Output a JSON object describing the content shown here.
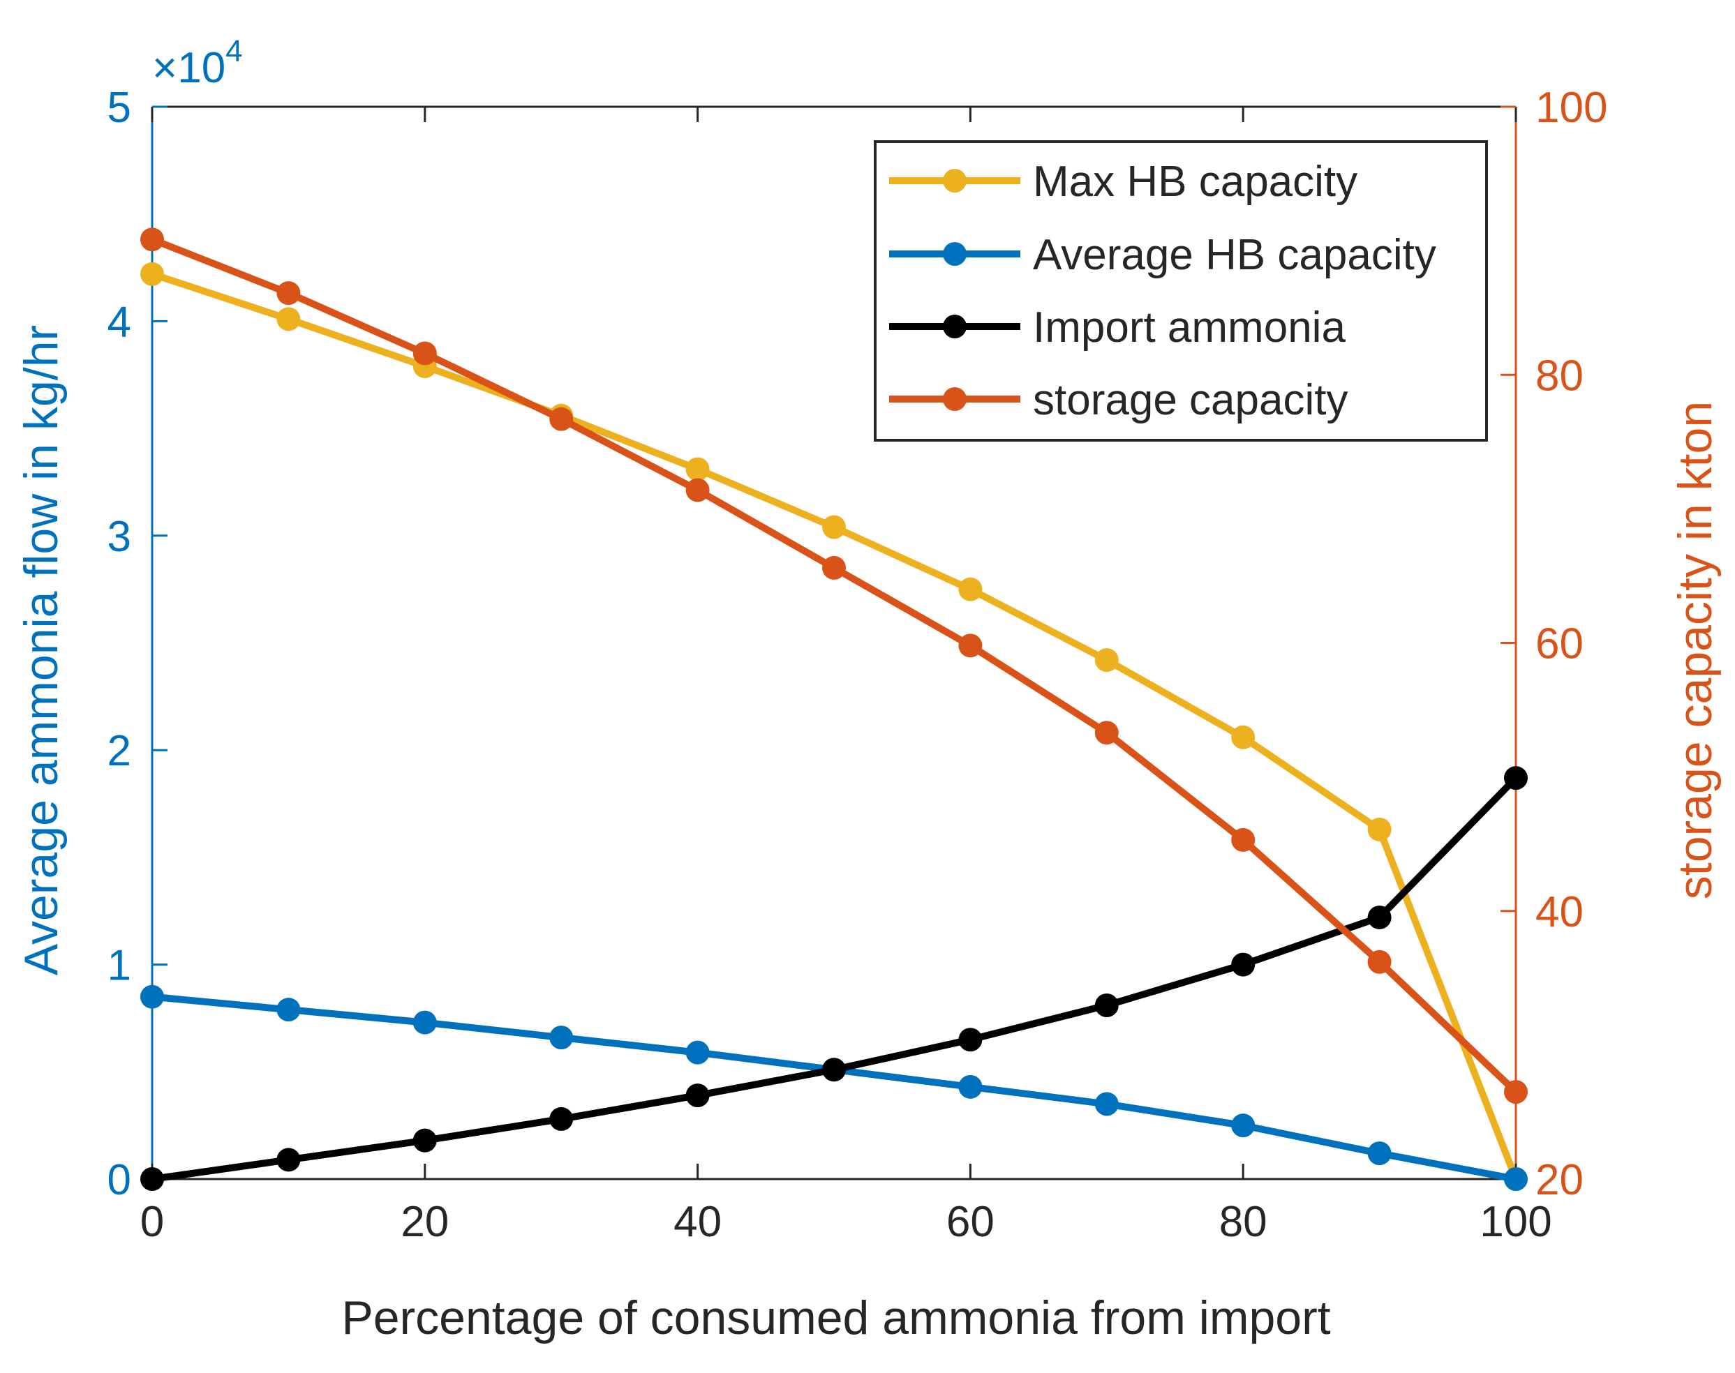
{
  "chart_data": {
    "type": "line",
    "title": "",
    "xlabel": "Percentage of consumed ammonia from import",
    "ylabel_left": "Average ammonia flow in kg/hr",
    "ylabel_right": "storage capacity in kton",
    "left_axis_multiplier": "×10",
    "left_axis_exponent": "4",
    "x": [
      0,
      10,
      20,
      30,
      40,
      50,
      60,
      70,
      80,
      90,
      100
    ],
    "xlim": [
      0,
      100
    ],
    "ylim_left": [
      0,
      5
    ],
    "ylim_right": [
      20,
      100
    ],
    "xticks": [
      0,
      20,
      40,
      60,
      80,
      100
    ],
    "xtick_labels": [
      "0",
      "20",
      "40",
      "60",
      "80",
      "100"
    ],
    "yticks_left": [
      0,
      1,
      2,
      3,
      4,
      5
    ],
    "ytick_labels_left": [
      "0",
      "1",
      "2",
      "3",
      "4",
      "5"
    ],
    "yticks_right": [
      20,
      40,
      60,
      80,
      100
    ],
    "ytick_labels_right": [
      "20",
      "40",
      "60",
      "80",
      "100"
    ],
    "grid": false,
    "legend_position": "top-right",
    "colors": {
      "left_axis": "#0072BD",
      "right_axis": "#D95319",
      "axes": "#262626",
      "max_hb": "#EDB120",
      "avg_hb": "#0072BD",
      "import": "#000000",
      "storage": "#D95319"
    },
    "series": [
      {
        "name": "Max HB capacity",
        "axis": "left",
        "color": "#EDB120",
        "values": [
          4.22,
          4.01,
          3.79,
          3.56,
          3.31,
          3.04,
          2.75,
          2.42,
          2.06,
          1.63,
          0.0
        ]
      },
      {
        "name": "Average HB capacity",
        "axis": "left",
        "color": "#0072BD",
        "values": [
          0.85,
          0.79,
          0.73,
          0.66,
          0.59,
          0.51,
          0.43,
          0.35,
          0.25,
          0.12,
          0.0
        ]
      },
      {
        "name": "Import ammonia",
        "axis": "left",
        "color": "#000000",
        "values": [
          0.0,
          0.09,
          0.18,
          0.28,
          0.39,
          0.51,
          0.65,
          0.81,
          1.0,
          1.22,
          1.87
        ]
      },
      {
        "name": "storage capacity",
        "axis": "right",
        "color": "#D95319",
        "values": [
          90.1,
          86.1,
          81.6,
          76.7,
          71.4,
          65.6,
          59.8,
          53.3,
          45.3,
          36.2,
          26.5
        ]
      }
    ]
  }
}
